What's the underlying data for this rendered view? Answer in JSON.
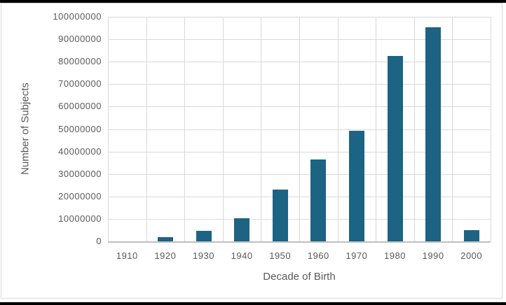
{
  "chart_data": {
    "type": "bar",
    "title": "",
    "xlabel": "Decade of Birth",
    "ylabel": "Number of Subjects",
    "categories": [
      "1910",
      "1920",
      "1930",
      "1940",
      "1950",
      "1960",
      "1970",
      "1980",
      "1990",
      "2000"
    ],
    "values": [
      0,
      2000000,
      4700000,
      10300000,
      23000000,
      36500000,
      49300000,
      82500000,
      95400000,
      5000000
    ],
    "ylim": [
      0,
      100000000
    ],
    "ytick_interval": 10000000,
    "ytick_labels": [
      "0",
      "10000000",
      "20000000",
      "30000000",
      "40000000",
      "50000000",
      "60000000",
      "70000000",
      "80000000",
      "90000000",
      "100000000"
    ],
    "grid": "horizontal-and-vertical",
    "legend": "none",
    "colors": {
      "bar": "#1C6384",
      "gridline": "#D9D9D9",
      "axis_line": "#BFBFBF",
      "text": "#595959",
      "frame_border": "#D9D9D9",
      "frame_strip": "#000000",
      "background": "#FFFFFF"
    }
  }
}
